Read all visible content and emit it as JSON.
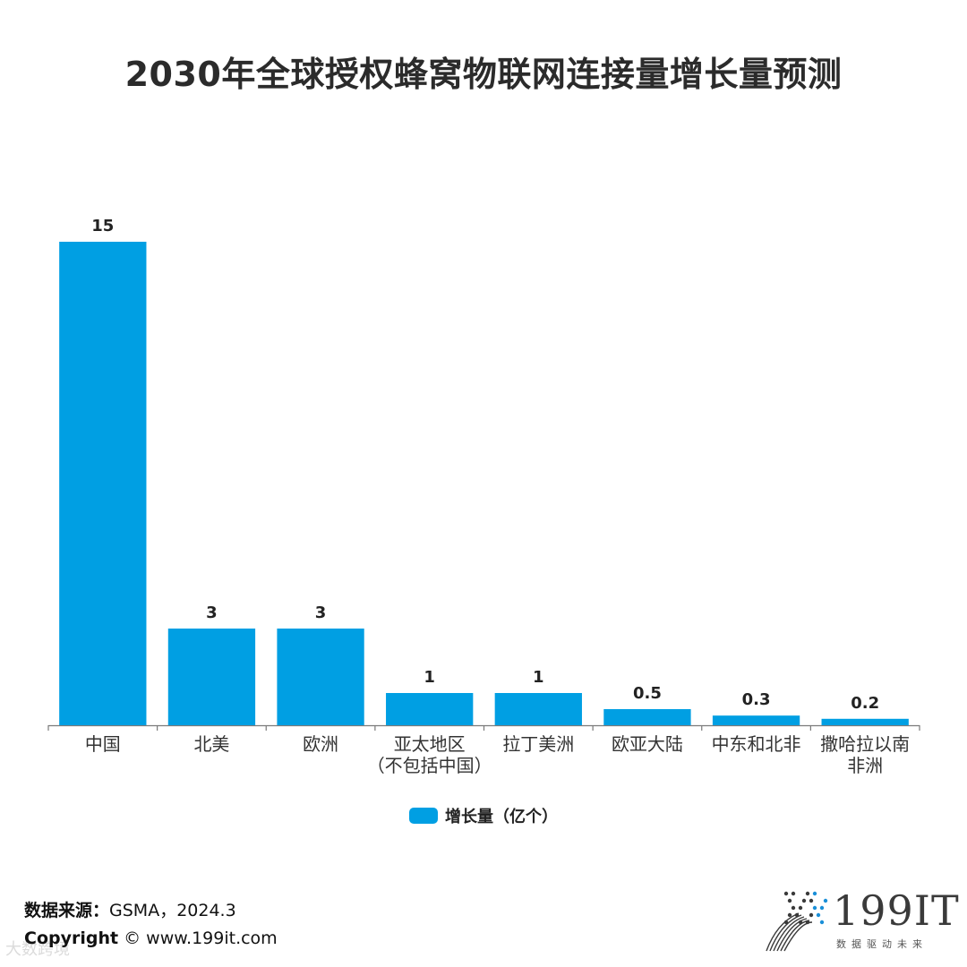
{
  "page": {
    "footer": {
      "source_label": "数据来源：",
      "source_value": "GSMA，2024.3",
      "copyright_label": "Copyright",
      "copyright_value": "© www.199it.com",
      "watermark": "大数跨境"
    },
    "logo": {
      "text": "199IT",
      "tagline": "数据驱动未来",
      "accent_color": "#1a8fd8"
    }
  },
  "chart_data": {
    "type": "bar",
    "title": "2030年全球授权蜂窝物联网连接量增长量预测",
    "categories": [
      "中国",
      "北美",
      "欧洲",
      "亚太地区\n（不包括中国）",
      "拉丁美洲",
      "欧亚大陆",
      "中东和北非",
      "撒哈拉以南\n非洲"
    ],
    "series": [
      {
        "name": "增长量（亿个）",
        "values": [
          15,
          3,
          3,
          1,
          1,
          0.5,
          0.3,
          0.2
        ],
        "labels": [
          "15",
          "3",
          "3",
          "1",
          "1",
          "0.5",
          "0.3",
          "0.2"
        ],
        "color": "#009fe3"
      }
    ],
    "ylim": [
      0,
      15
    ],
    "xlabel": "",
    "ylabel": "",
    "grid": false,
    "legend": "bottom-center"
  }
}
